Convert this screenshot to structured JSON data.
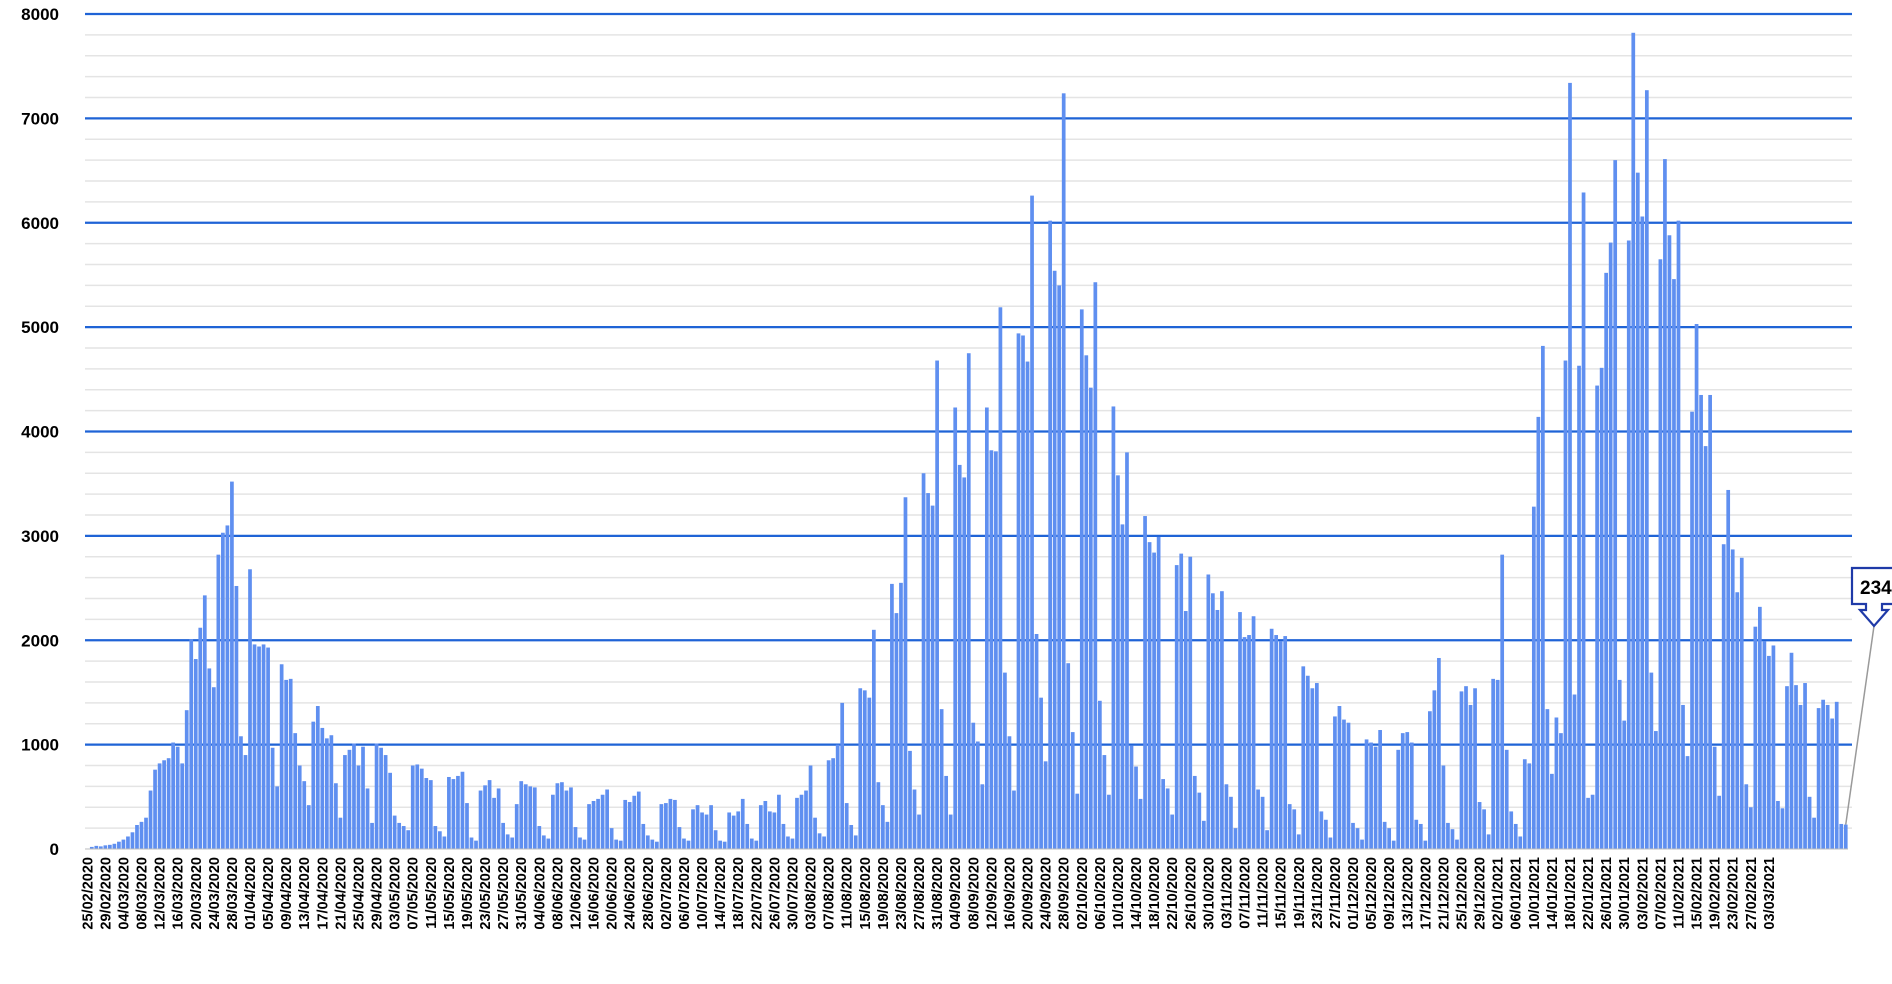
{
  "chart_data": {
    "type": "bar",
    "title": "",
    "xlabel": "",
    "ylabel": "",
    "ylim": [
      0,
      8000
    ],
    "y_ticks": [
      0,
      1000,
      2000,
      3000,
      4000,
      5000,
      6000,
      7000,
      8000
    ],
    "grid": "major and minor horizontal gridlines",
    "bar_color": "#5f8ff0",
    "gridline_color": "#1f63d6",
    "minor_gridline_color": "#e4e4e4",
    "x_start": "25/02/2020",
    "x_end": "07/03/2021",
    "x_tick_labels": [
      "25/02/2020",
      "29/02/2020",
      "04/03/2020",
      "08/03/2020",
      "12/03/2020",
      "16/03/2020",
      "20/03/2020",
      "24/03/2020",
      "28/03/2020",
      "01/04/2020",
      "05/04/2020",
      "09/04/2020",
      "13/04/2020",
      "17/04/2020",
      "21/04/2020",
      "25/04/2020",
      "29/04/2020",
      "03/05/2020",
      "07/05/2020",
      "11/05/2020",
      "15/05/2020",
      "19/05/2020",
      "23/05/2020",
      "27/05/2020",
      "31/05/2020",
      "04/06/2020",
      "08/06/2020",
      "12/06/2020",
      "16/06/2020",
      "20/06/2020",
      "24/06/2020",
      "28/06/2020",
      "02/07/2020",
      "06/07/2020",
      "10/07/2020",
      "14/07/2020",
      "18/07/2020",
      "22/07/2020",
      "26/07/2020",
      "30/07/2020",
      "03/08/2020",
      "07/08/2020",
      "11/08/2020",
      "15/08/2020",
      "19/08/2020",
      "23/08/2020",
      "27/08/2020",
      "31/08/2020",
      "04/09/2020",
      "08/09/2020",
      "12/09/2020",
      "16/09/2020",
      "20/09/2020",
      "24/09/2020",
      "28/09/2020",
      "02/10/2020",
      "06/10/2020",
      "10/10/2020",
      "14/10/2020",
      "18/10/2020",
      "22/10/2020",
      "26/10/2020",
      "30/10/2020",
      "03/11/2020",
      "07/11/2020",
      "11/11/2020",
      "15/11/2020",
      "19/11/2020",
      "23/11/2020",
      "27/11/2020",
      "01/12/2020",
      "05/12/2020",
      "09/12/2020",
      "13/12/2020",
      "17/12/2020",
      "21/12/2020",
      "25/12/2020",
      "29/12/2020",
      "02/01/2021",
      "06/01/2021",
      "10/01/2021",
      "14/01/2021",
      "18/01/2021",
      "22/01/2021",
      "26/01/2021",
      "30/01/2021",
      "03/02/2021",
      "07/02/2021",
      "11/02/2021",
      "15/02/2021",
      "19/02/2021",
      "23/02/2021",
      "27/02/2021",
      "03/03/2021"
    ],
    "values": [
      5,
      20,
      30,
      25,
      35,
      40,
      50,
      70,
      90,
      120,
      160,
      230,
      260,
      300,
      560,
      760,
      820,
      850,
      870,
      1020,
      980,
      820,
      1330,
      2010,
      1820,
      2120,
      2430,
      1730,
      1550,
      2820,
      3030,
      3100,
      3520,
      2520,
      1080,
      900,
      2680,
      1960,
      1940,
      1960,
      1930,
      970,
      600,
      1770,
      1620,
      1630,
      1110,
      800,
      650,
      420,
      1220,
      1370,
      1160,
      1060,
      1090,
      630,
      300,
      900,
      950,
      1010,
      800,
      980,
      580,
      250,
      1010,
      970,
      900,
      730,
      320,
      250,
      220,
      180,
      800,
      810,
      770,
      680,
      660,
      220,
      170,
      120,
      690,
      670,
      700,
      740,
      440,
      110,
      80,
      560,
      610,
      660,
      490,
      580,
      250,
      140,
      110,
      430,
      650,
      620,
      600,
      590,
      220,
      130,
      100,
      520,
      630,
      640,
      560,
      590,
      210,
      110,
      90,
      430,
      460,
      480,
      520,
      570,
      200,
      90,
      80,
      470,
      450,
      510,
      550,
      240,
      130,
      90,
      70,
      430,
      440,
      480,
      470,
      210,
      100,
      80,
      380,
      420,
      350,
      330,
      420,
      180,
      80,
      70,
      350,
      320,
      360,
      480,
      240,
      100,
      80,
      420,
      460,
      360,
      350,
      520,
      240,
      120,
      100,
      490,
      520,
      560,
      800,
      300,
      150,
      120,
      850,
      870,
      1000,
      1400,
      440,
      230,
      130,
      1540,
      1520,
      1450,
      2100,
      640,
      420,
      260,
      2540,
      2260,
      2550,
      3370,
      940,
      570,
      330,
      3600,
      3410,
      3290,
      4680,
      1340,
      700,
      330,
      4230,
      3680,
      3560,
      4750,
      1210,
      1030,
      620,
      4230,
      3820,
      3810,
      5190,
      1690,
      1080,
      560,
      4940,
      4920,
      4670,
      6260,
      2060,
      1450,
      840,
      6020,
      5540,
      5400,
      7240,
      1780,
      1120,
      530,
      5170,
      4730,
      4420,
      5430,
      1420,
      900,
      520,
      4240,
      3580,
      3110,
      3800,
      990,
      790,
      480,
      3190,
      2940,
      2840,
      2990,
      670,
      580,
      330,
      2720,
      2830,
      2280,
      2800,
      700,
      540,
      270,
      2630,
      2450,
      2290,
      2470,
      620,
      500,
      200,
      2270,
      2030,
      2050,
      2230,
      570,
      500,
      180,
      2110,
      2050,
      1990,
      2040,
      430,
      380,
      140,
      1750,
      1660,
      1540,
      1590,
      360,
      280,
      110,
      1270,
      1370,
      1240,
      1210,
      250,
      200,
      90,
      1050,
      1020,
      980,
      1140,
      260,
      200,
      80,
      950,
      1110,
      1120,
      1020,
      280,
      240,
      80,
      1320,
      1520,
      1830,
      800,
      250,
      190,
      90,
      1510,
      1560,
      1380,
      1540,
      450,
      380,
      140,
      1630,
      1620,
      2820,
      950,
      360,
      240,
      120,
      860,
      820,
      3280,
      4140,
      4820,
      1340,
      720,
      1260,
      1110,
      4680,
      7340,
      1480,
      4630,
      6290,
      490,
      520,
      4440,
      4610,
      5520,
      5810,
      6600,
      1620,
      1230,
      5830,
      7820,
      6480,
      6060,
      7270,
      1690,
      1130,
      5650,
      6610,
      5880,
      5460,
      6020,
      1380,
      890,
      4190,
      5030,
      4350,
      3860,
      4350,
      980,
      510,
      2920,
      3440,
      2870,
      2460,
      2790,
      620,
      400,
      2130,
      2320,
      1990,
      1850,
      1950,
      460,
      390,
      1560,
      1880,
      1570,
      1380,
      1590,
      500,
      300,
      1350,
      1430,
      1380,
      1250,
      1410,
      240,
      234
    ],
    "callout": {
      "label": "234",
      "points_to": "07/03/2021"
    }
  }
}
